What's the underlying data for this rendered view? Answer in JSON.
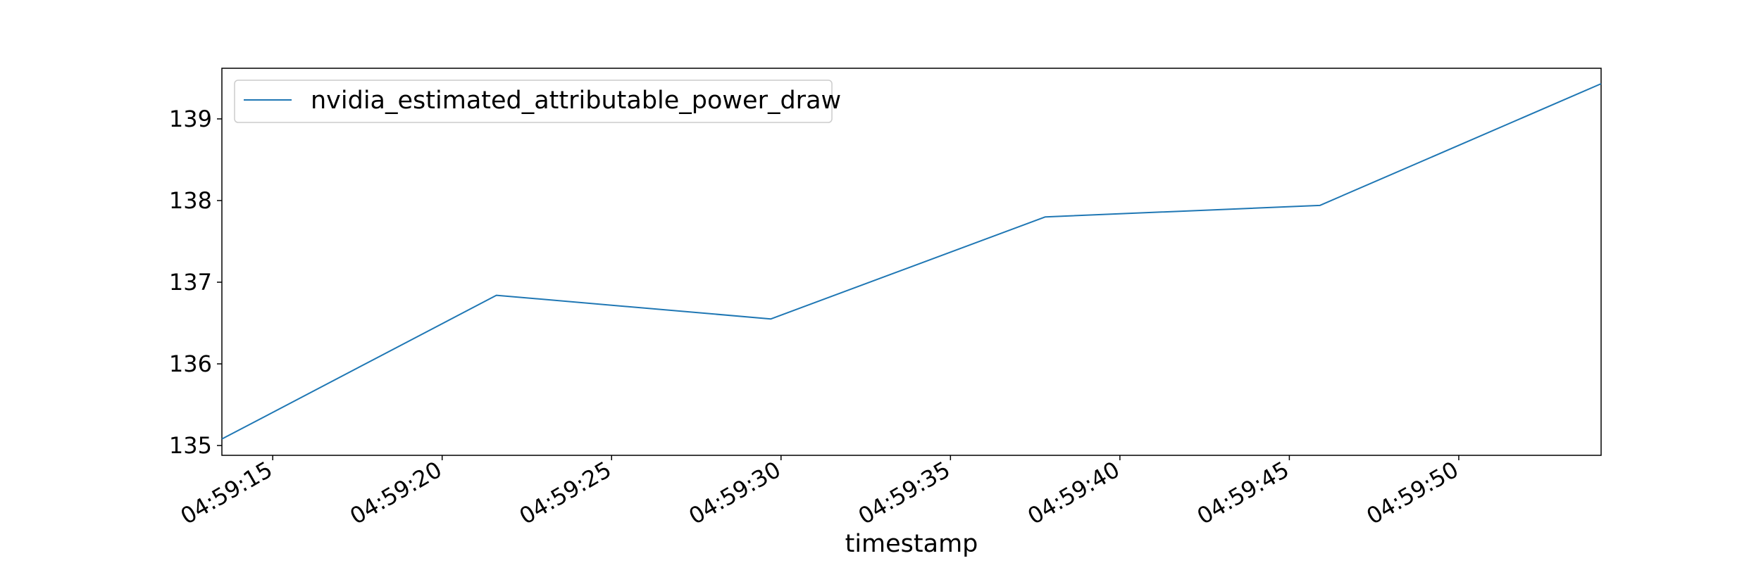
{
  "chart_data": {
    "type": "line",
    "title": "",
    "xlabel": "timestamp",
    "ylabel": "",
    "x_tick_labels": [
      "04:59:15",
      "04:59:20",
      "04:59:25",
      "04:59:30",
      "04:59:35",
      "04:59:40",
      "04:59:45",
      "04:59:50"
    ],
    "x_tick_seconds": [
      15,
      20,
      25,
      30,
      35,
      40,
      45,
      50
    ],
    "y_ticks": [
      135,
      136,
      137,
      138,
      139
    ],
    "xlim": [
      "04:59:13.5",
      "04:59:54.2"
    ],
    "ylim": [
      134.88,
      139.62
    ],
    "grid": false,
    "legend_position": "upper left",
    "series": [
      {
        "name": "nvidia_estimated_attributable_power_draw",
        "color": "#1f77b4",
        "x": [
          "04:59:13.5",
          "04:59:21.6",
          "04:59:29.7",
          "04:59:37.8",
          "04:59:45.9",
          "04:59:54.2"
        ],
        "x_seconds": [
          13.5,
          21.6,
          29.7,
          37.8,
          45.9,
          54.2
        ],
        "y": [
          135.08,
          136.84,
          136.55,
          137.8,
          137.94,
          139.43
        ]
      }
    ]
  }
}
